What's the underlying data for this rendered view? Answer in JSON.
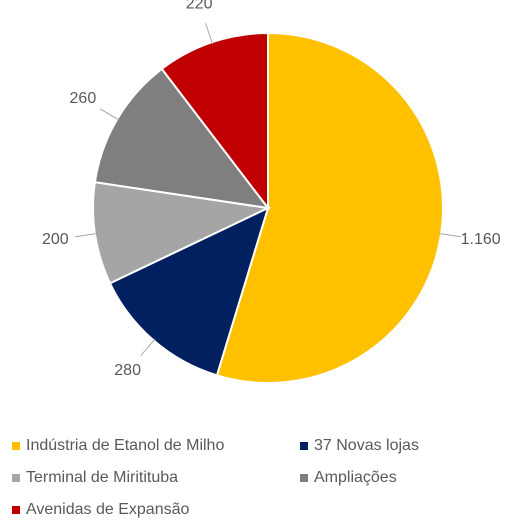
{
  "chart_data": {
    "type": "pie",
    "categories": [
      "Indústria de Etanol de Milho",
      "37 Novas lojas",
      "Terminal de Miritituba",
      "Ampliações",
      "Avenidas de Expansão"
    ],
    "values": [
      1160,
      280,
      200,
      260,
      220
    ],
    "value_labels": [
      "1.160",
      "280",
      "200",
      "260",
      "220"
    ],
    "colors": [
      "#FFC000",
      "#002060",
      "#A5A5A5",
      "#7F7F7F",
      "#C00000"
    ]
  }
}
